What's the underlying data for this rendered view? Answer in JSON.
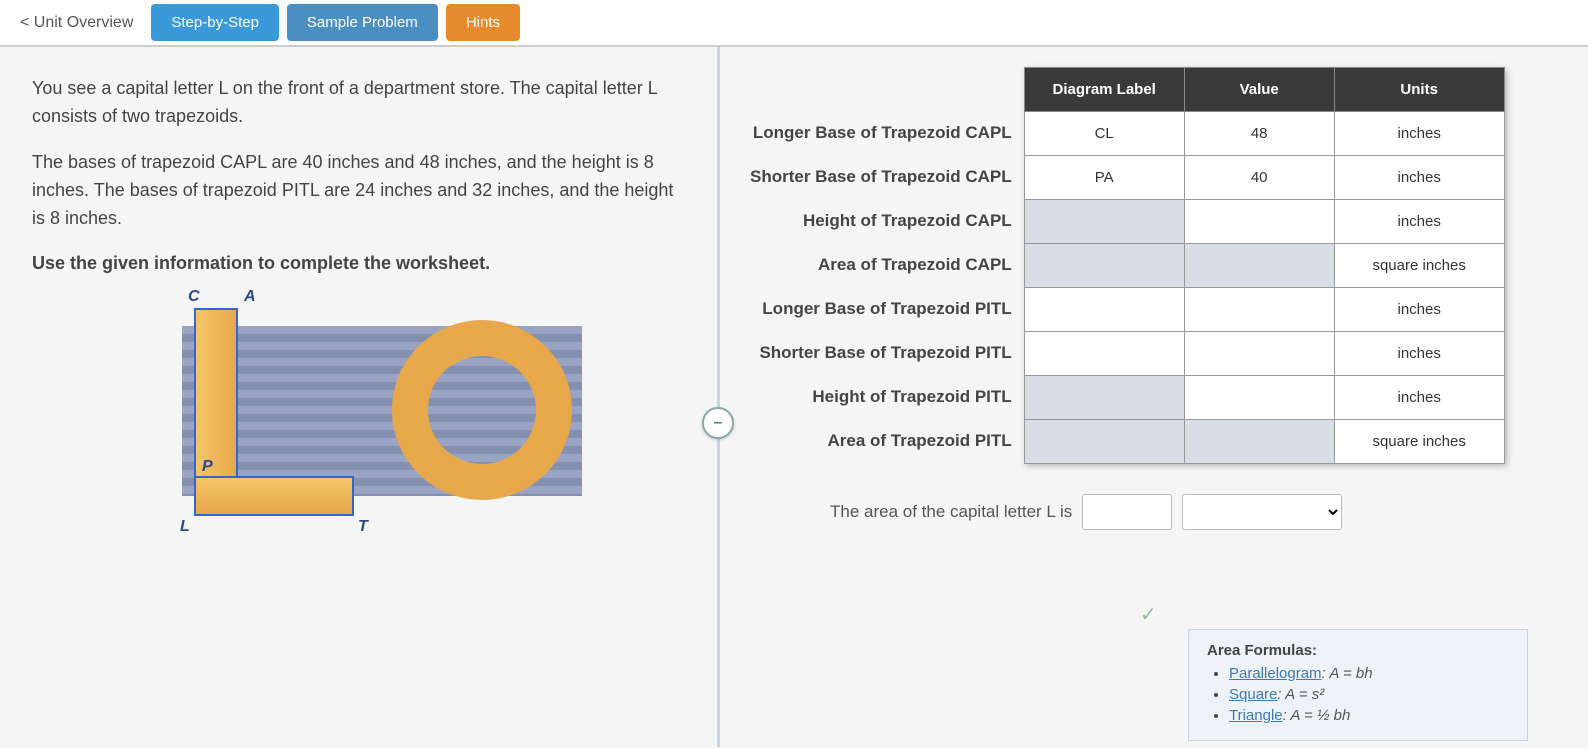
{
  "topbar": {
    "back": "< Unit Overview",
    "step": "Step-by-Step",
    "sample": "Sample Problem",
    "hints": "Hints"
  },
  "problem": {
    "p1": "You see a capital letter L on the front of a department store. The capital letter L consists of two trapezoids.",
    "p2": "The bases of trapezoid CAPL are 40 inches and 48 inches, and the height is 8 inches. The bases of trapezoid PITL are 24 inches and 32 inches, and the height is 8 inches.",
    "p3": "Use the given information to complete the worksheet."
  },
  "diagram_points": {
    "C": "C",
    "A": "A",
    "P": "P",
    "L": "L",
    "T": "T"
  },
  "table": {
    "headers": {
      "diagram": "Diagram Label",
      "value": "Value",
      "units": "Units"
    },
    "row_labels": [
      "Longer Base of Trapezoid CAPL",
      "Shorter Base of Trapezoid CAPL",
      "Height of Trapezoid CAPL",
      "Area of Trapezoid CAPL",
      "Longer Base of Trapezoid PITL",
      "Shorter Base of Trapezoid PITL",
      "Height of Trapezoid PITL",
      "Area of Trapezoid PITL"
    ],
    "rows": [
      {
        "diagram": "CL",
        "value": "48",
        "units": "inches",
        "diagram_shaded": false,
        "value_shaded": false
      },
      {
        "diagram": "PA",
        "value": "40",
        "units": "inches",
        "diagram_shaded": false,
        "value_shaded": false
      },
      {
        "diagram": "",
        "value": "",
        "units": "inches",
        "diagram_shaded": true,
        "value_shaded": false
      },
      {
        "diagram": "",
        "value": "",
        "units": "square inches",
        "diagram_shaded": true,
        "value_shaded": true
      },
      {
        "diagram": "",
        "value": "",
        "units": "inches",
        "diagram_shaded": false,
        "value_shaded": false
      },
      {
        "diagram": "",
        "value": "",
        "units": "inches",
        "diagram_shaded": false,
        "value_shaded": false
      },
      {
        "diagram": "",
        "value": "",
        "units": "inches",
        "diagram_shaded": true,
        "value_shaded": false
      },
      {
        "diagram": "",
        "value": "",
        "units": "square inches",
        "diagram_shaded": true,
        "value_shaded": true
      }
    ]
  },
  "answer": {
    "prompt": "The area of the capital letter L is",
    "value": "",
    "units_placeholder": ""
  },
  "formulas": {
    "title": "Area Formulas:",
    "items": [
      {
        "name": "Parallelogram",
        "eq": "A = bh"
      },
      {
        "name": "Square",
        "eq": "A = s²"
      },
      {
        "name": "Triangle",
        "eq": "A = ½ bh"
      }
    ]
  },
  "collapse_icon": "–"
}
